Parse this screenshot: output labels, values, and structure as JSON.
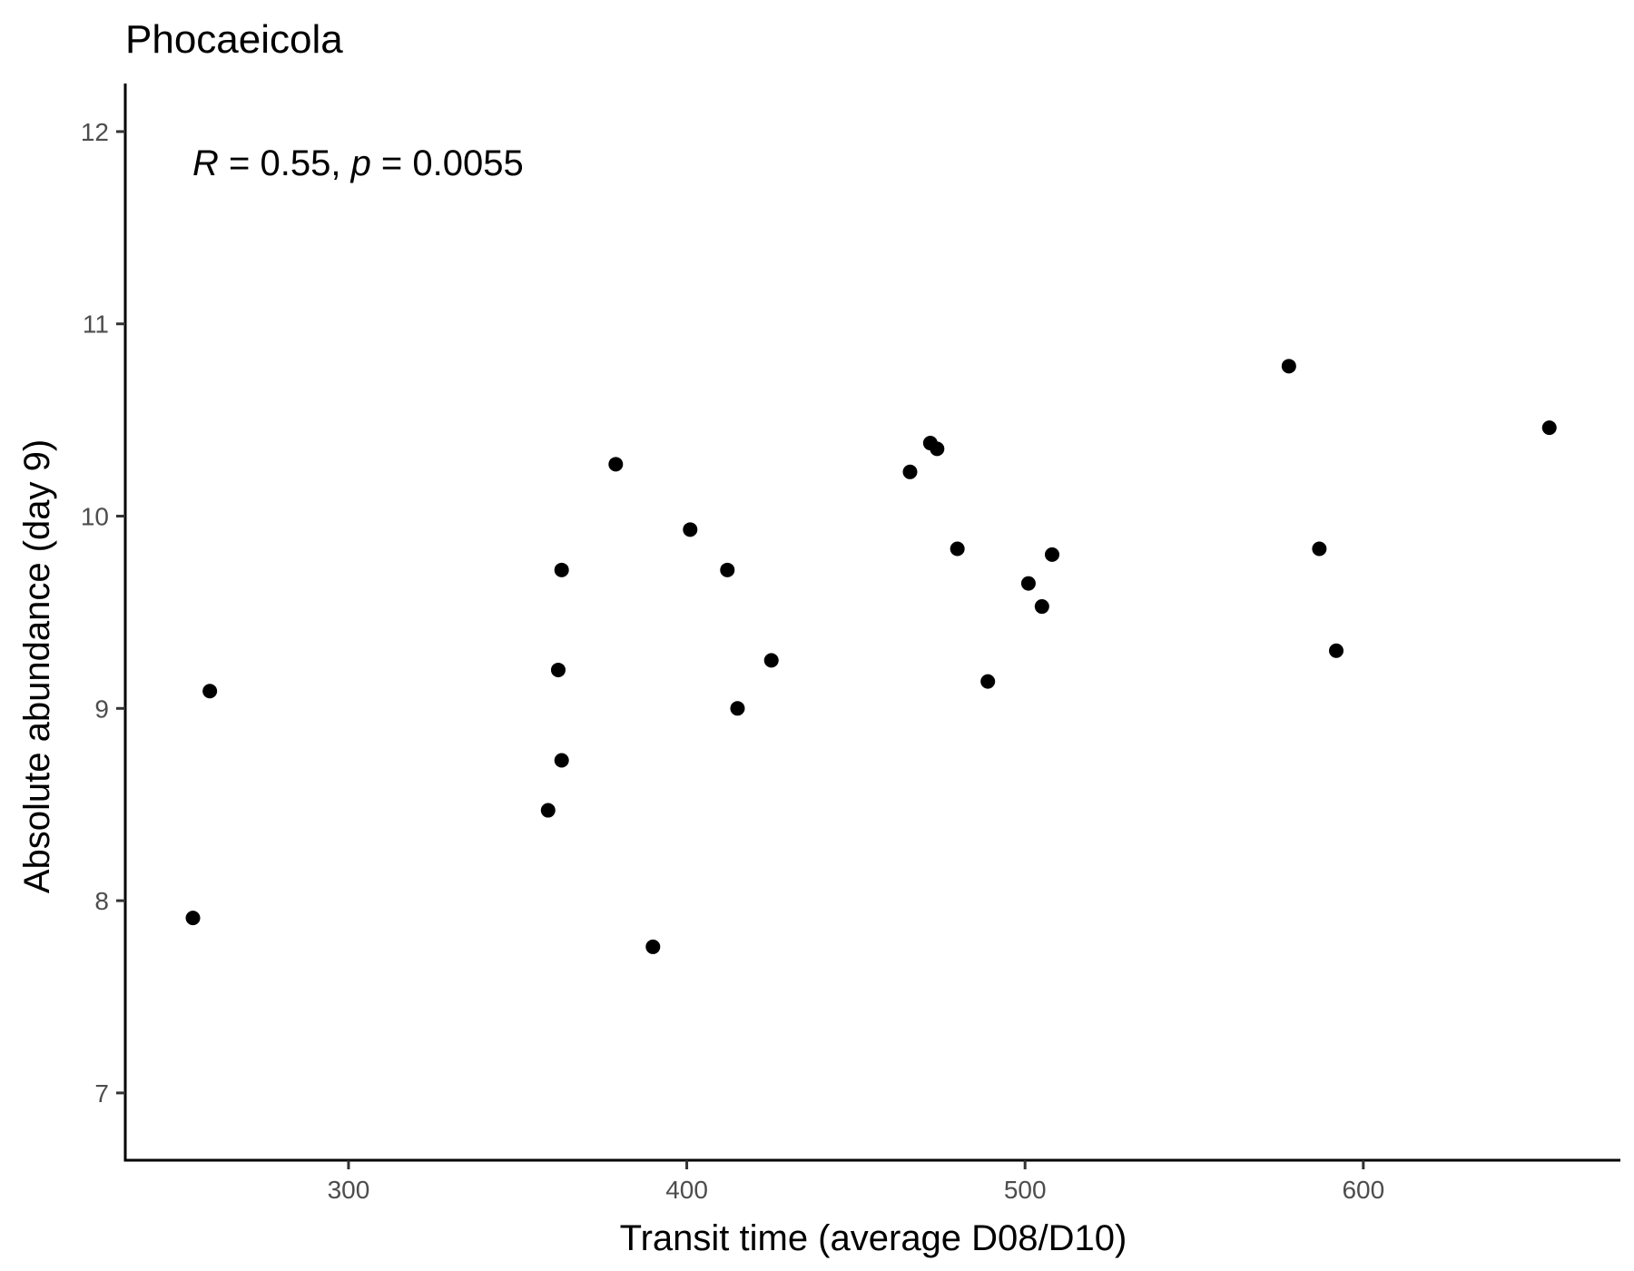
{
  "chart_data": {
    "type": "scatter",
    "title": "Phocaeicola",
    "xlabel": "Transit time (average D08/D10)",
    "ylabel": "Absolute abundance (day 9)",
    "annotation": {
      "r_symbol": "R",
      "r_text": " = 0.55, ",
      "p_symbol": "p",
      "p_text": " = 0.0055"
    },
    "xlim": [
      234,
      676
    ],
    "ylim": [
      6.65,
      12.25
    ],
    "xticks": [
      300,
      400,
      500,
      600
    ],
    "yticks": [
      7,
      8,
      9,
      10,
      11,
      12
    ],
    "grid": false,
    "point_color": "#000000",
    "points": [
      {
        "x": 254,
        "y": 7.91
      },
      {
        "x": 259,
        "y": 9.09
      },
      {
        "x": 359,
        "y": 8.47
      },
      {
        "x": 362,
        "y": 9.2
      },
      {
        "x": 363,
        "y": 8.73
      },
      {
        "x": 363,
        "y": 9.72
      },
      {
        "x": 379,
        "y": 10.27
      },
      {
        "x": 390,
        "y": 7.76
      },
      {
        "x": 401,
        "y": 9.93
      },
      {
        "x": 412,
        "y": 9.72
      },
      {
        "x": 415,
        "y": 9.0
      },
      {
        "x": 425,
        "y": 9.25
      },
      {
        "x": 466,
        "y": 10.23
      },
      {
        "x": 472,
        "y": 10.38
      },
      {
        "x": 474,
        "y": 10.35
      },
      {
        "x": 480,
        "y": 9.83
      },
      {
        "x": 489,
        "y": 9.14
      },
      {
        "x": 501,
        "y": 9.65
      },
      {
        "x": 505,
        "y": 9.53
      },
      {
        "x": 508,
        "y": 9.8
      },
      {
        "x": 578,
        "y": 10.78
      },
      {
        "x": 587,
        "y": 9.83
      },
      {
        "x": 592,
        "y": 9.3
      },
      {
        "x": 655,
        "y": 10.46
      }
    ]
  }
}
